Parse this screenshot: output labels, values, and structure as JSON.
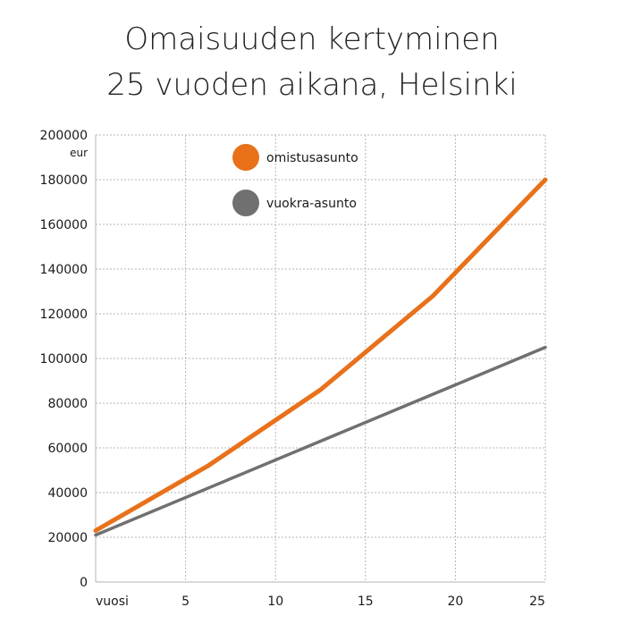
{
  "title_line1": "Omaisuuden kertyminen",
  "title_line2": "25 vuoden aikana, Helsinki",
  "colors": {
    "own": "#e8711a",
    "rent": "#707070",
    "grid": "#b5b5b5"
  },
  "chart_data": {
    "type": "line",
    "title": "Omaisuuden kertyminen 25 vuoden aikana, Helsinki",
    "xlabel": "vuosi",
    "ylabel": "eur",
    "xlim": [
      0,
      25
    ],
    "ylim": [
      0,
      200000
    ],
    "x_ticks": [
      5,
      10,
      15,
      20,
      25
    ],
    "y_ticks": [
      0,
      20000,
      40000,
      60000,
      80000,
      100000,
      120000,
      140000,
      160000,
      180000,
      200000
    ],
    "y_tick_labels": [
      "0",
      "20000",
      "40000",
      "60000",
      "80000",
      "100000",
      "120000",
      "140000",
      "160000",
      "180000",
      "200000"
    ],
    "grid": true,
    "legend_placement": "top-left",
    "series": [
      {
        "name": "omistusasunto",
        "color": "#e8711a",
        "x": [
          0,
          6.25,
          12.5,
          18.75,
          25
        ],
        "y": [
          23000,
          52000,
          86000,
          128000,
          180000
        ]
      },
      {
        "name": "vuokra-asunto",
        "color": "#707070",
        "x": [
          0,
          25
        ],
        "y": [
          21000,
          105000
        ]
      }
    ]
  }
}
